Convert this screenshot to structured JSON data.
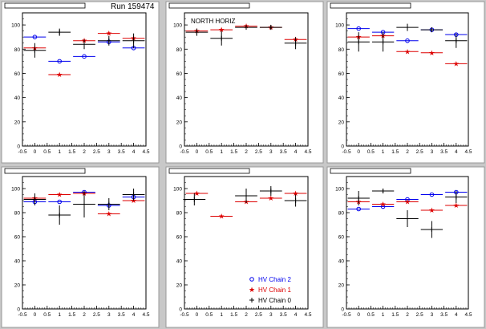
{
  "run_title": "Run 159474",
  "colors": {
    "chain2": "#0000ee",
    "chain1": "#dd0000",
    "chain0": "#000000",
    "pad_bg": "#ffffff",
    "canvas_bg": "#c8c8c8"
  },
  "legend": {
    "entries": [
      {
        "label": "HV Chain 2",
        "marker": "open-circle",
        "color": "#0000ee"
      },
      {
        "label": "HV Chain 1",
        "marker": "star",
        "color": "#dd0000"
      },
      {
        "label": "HV Chain 0",
        "marker": "plus",
        "color": "#000000"
      }
    ]
  },
  "chart_data": [
    {
      "type": "scatter",
      "title": "",
      "annotation": "",
      "xlabel": "",
      "ylabel": "",
      "xlim": [
        -0.5,
        4.5
      ],
      "ylim": [
        0,
        110
      ],
      "xticks": [
        "-0.5",
        "0",
        "0.5",
        "1",
        "1.5",
        "2",
        "2.5",
        "3",
        "3.5",
        "4",
        "4.5"
      ],
      "yticks": [
        "0",
        "20",
        "40",
        "60",
        "80",
        "100"
      ],
      "series": [
        {
          "key": "chain2",
          "x": [
            0,
            1,
            2,
            3,
            4
          ],
          "y": [
            90,
            70,
            74,
            86,
            81
          ],
          "yerr": [
            0,
            0,
            0,
            0,
            0
          ]
        },
        {
          "key": "chain1",
          "x": [
            0,
            1,
            2,
            3,
            4
          ],
          "y": [
            81,
            59,
            87,
            93,
            89
          ],
          "yerr": [
            0,
            0,
            0,
            0,
            0
          ]
        },
        {
          "key": "chain0",
          "x": [
            0,
            1,
            2,
            3,
            4
          ],
          "y": [
            79,
            94,
            84,
            87,
            87
          ],
          "yerr": [
            6,
            3,
            4,
            4,
            6
          ]
        }
      ]
    },
    {
      "type": "scatter",
      "title": "",
      "annotation": "NORTH HORIZ",
      "xlabel": "",
      "ylabel": "",
      "xlim": [
        -0.5,
        4.5
      ],
      "ylim": [
        0,
        110
      ],
      "xticks": [
        "-0.5",
        "0",
        "0.5",
        "1",
        "1.5",
        "2",
        "2.5",
        "3",
        "3.5",
        "4",
        "4.5"
      ],
      "yticks": [
        "0",
        "20",
        "40",
        "60",
        "80",
        "100"
      ],
      "series": [
        {
          "key": "chain2",
          "x": [],
          "y": [],
          "yerr": []
        },
        {
          "key": "chain1",
          "x": [
            0,
            1,
            2,
            3,
            4
          ],
          "y": [
            95,
            96,
            99,
            98,
            88
          ],
          "yerr": [
            0,
            0,
            0,
            0,
            0
          ]
        },
        {
          "key": "chain0",
          "x": [
            0,
            1,
            2,
            3,
            4
          ],
          "y": [
            94,
            89,
            98,
            98,
            85
          ],
          "yerr": [
            3,
            6,
            0,
            2,
            5
          ]
        }
      ]
    },
    {
      "type": "scatter",
      "title": "",
      "annotation": "",
      "xlabel": "",
      "ylabel": "",
      "xlim": [
        -0.5,
        4.5
      ],
      "ylim": [
        0,
        110
      ],
      "xticks": [
        "-0.5",
        "0",
        "0.5",
        "1",
        "1.5",
        "2",
        "2.5",
        "3",
        "3.5",
        "4",
        "4.5"
      ],
      "yticks": [
        "0",
        "20",
        "40",
        "60",
        "80",
        "100"
      ],
      "series": [
        {
          "key": "chain2",
          "x": [
            0,
            1,
            2,
            3,
            4
          ],
          "y": [
            97,
            94,
            87,
            96,
            92
          ],
          "yerr": [
            0,
            0,
            0,
            0,
            0
          ]
        },
        {
          "key": "chain1",
          "x": [
            0,
            1,
            2,
            3,
            4
          ],
          "y": [
            90,
            91,
            78,
            77,
            68
          ],
          "yerr": [
            0,
            0,
            0,
            0,
            0
          ]
        },
        {
          "key": "chain0",
          "x": [
            0,
            1,
            2,
            3,
            4
          ],
          "y": [
            86,
            86,
            98,
            96,
            87
          ],
          "yerr": [
            8,
            8,
            3,
            2,
            6
          ]
        }
      ]
    },
    {
      "type": "scatter",
      "title": "",
      "annotation": "",
      "xlabel": "",
      "ylabel": "",
      "xlim": [
        -0.5,
        4.5
      ],
      "ylim": [
        0,
        110
      ],
      "xticks": [
        "-0.5",
        "0",
        "0.5",
        "1",
        "1.5",
        "2",
        "2.5",
        "3",
        "3.5",
        "4",
        "4.5"
      ],
      "yticks": [
        "0",
        "20",
        "40",
        "60",
        "80",
        "100"
      ],
      "series": [
        {
          "key": "chain2",
          "x": [
            0,
            1,
            2,
            3,
            4
          ],
          "y": [
            89,
            89,
            97,
            86,
            93
          ],
          "yerr": [
            0,
            0,
            0,
            0,
            0
          ]
        },
        {
          "key": "chain1",
          "x": [
            0,
            1,
            2,
            3,
            4
          ],
          "y": [
            92,
            95,
            96,
            79,
            90
          ],
          "yerr": [
            0,
            0,
            0,
            0,
            0
          ]
        },
        {
          "key": "chain0",
          "x": [
            0,
            1,
            2,
            3,
            4
          ],
          "y": [
            91,
            78,
            87,
            87,
            95
          ],
          "yerr": [
            5,
            8,
            11,
            5,
            5
          ]
        }
      ]
    },
    {
      "type": "scatter",
      "title": "",
      "annotation": "",
      "xlabel": "",
      "ylabel": "",
      "xlim": [
        -0.5,
        4.5
      ],
      "ylim": [
        0,
        110
      ],
      "xticks": [
        "-0.5",
        "0",
        "0.5",
        "1",
        "1.5",
        "2",
        "2.5",
        "3",
        "3.5",
        "4",
        "4.5"
      ],
      "yticks": [
        "0",
        "20",
        "40",
        "60",
        "80",
        "100"
      ],
      "series": [
        {
          "key": "chain2",
          "x": [],
          "y": [],
          "yerr": []
        },
        {
          "key": "chain1",
          "x": [
            0,
            1,
            2,
            3,
            4
          ],
          "y": [
            96,
            77,
            89,
            92,
            96
          ],
          "yerr": [
            0,
            0,
            0,
            0,
            0
          ]
        },
        {
          "key": "chain0",
          "x": [
            -0.1,
            2,
            3,
            4
          ],
          "y": [
            91,
            94,
            98,
            90
          ],
          "yerr": [
            5,
            6,
            4,
            5
          ]
        }
      ]
    },
    {
      "type": "scatter",
      "title": "",
      "annotation": "",
      "xlabel": "",
      "ylabel": "",
      "xlim": [
        -0.5,
        4.5
      ],
      "ylim": [
        0,
        110
      ],
      "xticks": [
        "-0.5",
        "0",
        "0.5",
        "1",
        "1.5",
        "2",
        "2.5",
        "3",
        "3.5",
        "4",
        "4.5"
      ],
      "yticks": [
        "0",
        "20",
        "40",
        "60",
        "80",
        "100"
      ],
      "series": [
        {
          "key": "chain2",
          "x": [
            0,
            1,
            2,
            3,
            4
          ],
          "y": [
            83,
            85,
            91,
            95,
            97
          ],
          "yerr": [
            0,
            0,
            0,
            0,
            0
          ]
        },
        {
          "key": "chain1",
          "x": [
            0,
            1,
            2,
            3,
            4
          ],
          "y": [
            89,
            87,
            89,
            82,
            86
          ],
          "yerr": [
            0,
            0,
            0,
            0,
            0
          ]
        },
        {
          "key": "chain0",
          "x": [
            0,
            1,
            2,
            3,
            4
          ],
          "y": [
            92,
            98,
            75,
            66,
            93
          ],
          "yerr": [
            6,
            2,
            7,
            7,
            5
          ]
        }
      ]
    }
  ]
}
